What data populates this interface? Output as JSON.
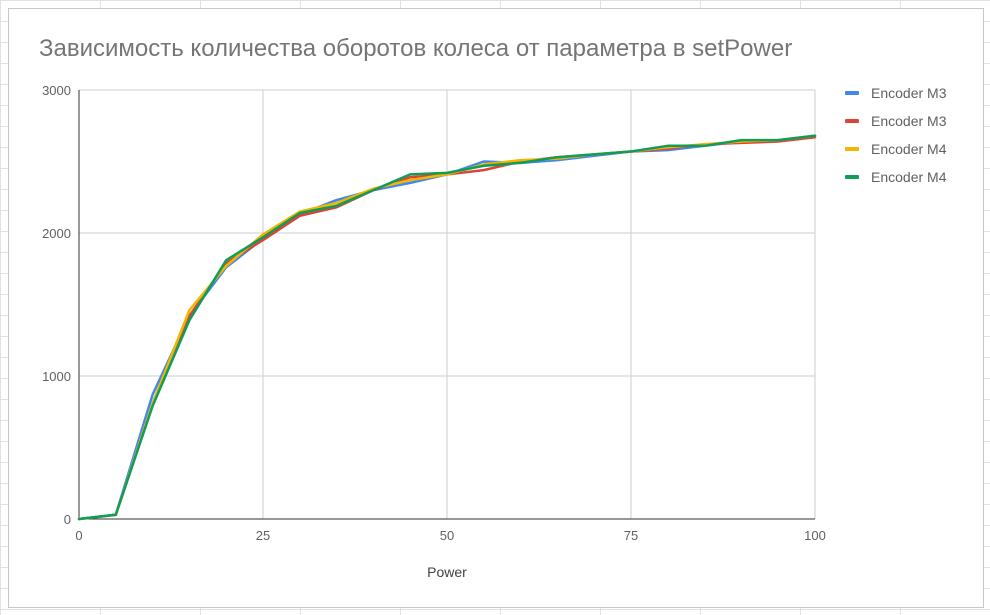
{
  "chart_data": {
    "type": "line",
    "title": "Зависимость количества оборотов колеса от параметра в setPower",
    "xlabel": "Power",
    "ylabel": "",
    "xlim": [
      0,
      100
    ],
    "ylim": [
      0,
      3000
    ],
    "xticks": [
      0,
      25,
      50,
      75,
      100
    ],
    "yticks": [
      0,
      1000,
      2000,
      3000
    ],
    "grid": true,
    "legend_position": "right",
    "x": [
      0,
      5,
      10,
      15,
      20,
      25,
      30,
      35,
      40,
      45,
      50,
      55,
      60,
      65,
      70,
      75,
      80,
      85,
      90,
      95,
      100
    ],
    "series": [
      {
        "name": "Encoder M3",
        "color": "#4285f4",
        "values": [
          0,
          30,
          870,
          1420,
          1760,
          1960,
          2130,
          2230,
          2300,
          2350,
          2410,
          2500,
          2490,
          2510,
          2540,
          2570,
          2580,
          2610,
          2640,
          2650,
          2680
        ]
      },
      {
        "name": "Encoder M3",
        "color": "#db4437",
        "values": [
          0,
          30,
          800,
          1420,
          1790,
          1950,
          2120,
          2180,
          2300,
          2390,
          2410,
          2440,
          2500,
          2530,
          2550,
          2570,
          2590,
          2620,
          2630,
          2640,
          2670
        ]
      },
      {
        "name": "Encoder M4",
        "color": "#f4b400",
        "values": [
          0,
          30,
          810,
          1460,
          1770,
          1990,
          2150,
          2210,
          2310,
          2370,
          2410,
          2480,
          2510,
          2520,
          2550,
          2570,
          2600,
          2620,
          2640,
          2650,
          2680
        ]
      },
      {
        "name": "Encoder M4",
        "color": "#0f9d58",
        "values": [
          0,
          30,
          790,
          1390,
          1810,
          1970,
          2140,
          2190,
          2300,
          2410,
          2420,
          2470,
          2490,
          2530,
          2550,
          2570,
          2610,
          2610,
          2650,
          2650,
          2680
        ]
      }
    ]
  }
}
